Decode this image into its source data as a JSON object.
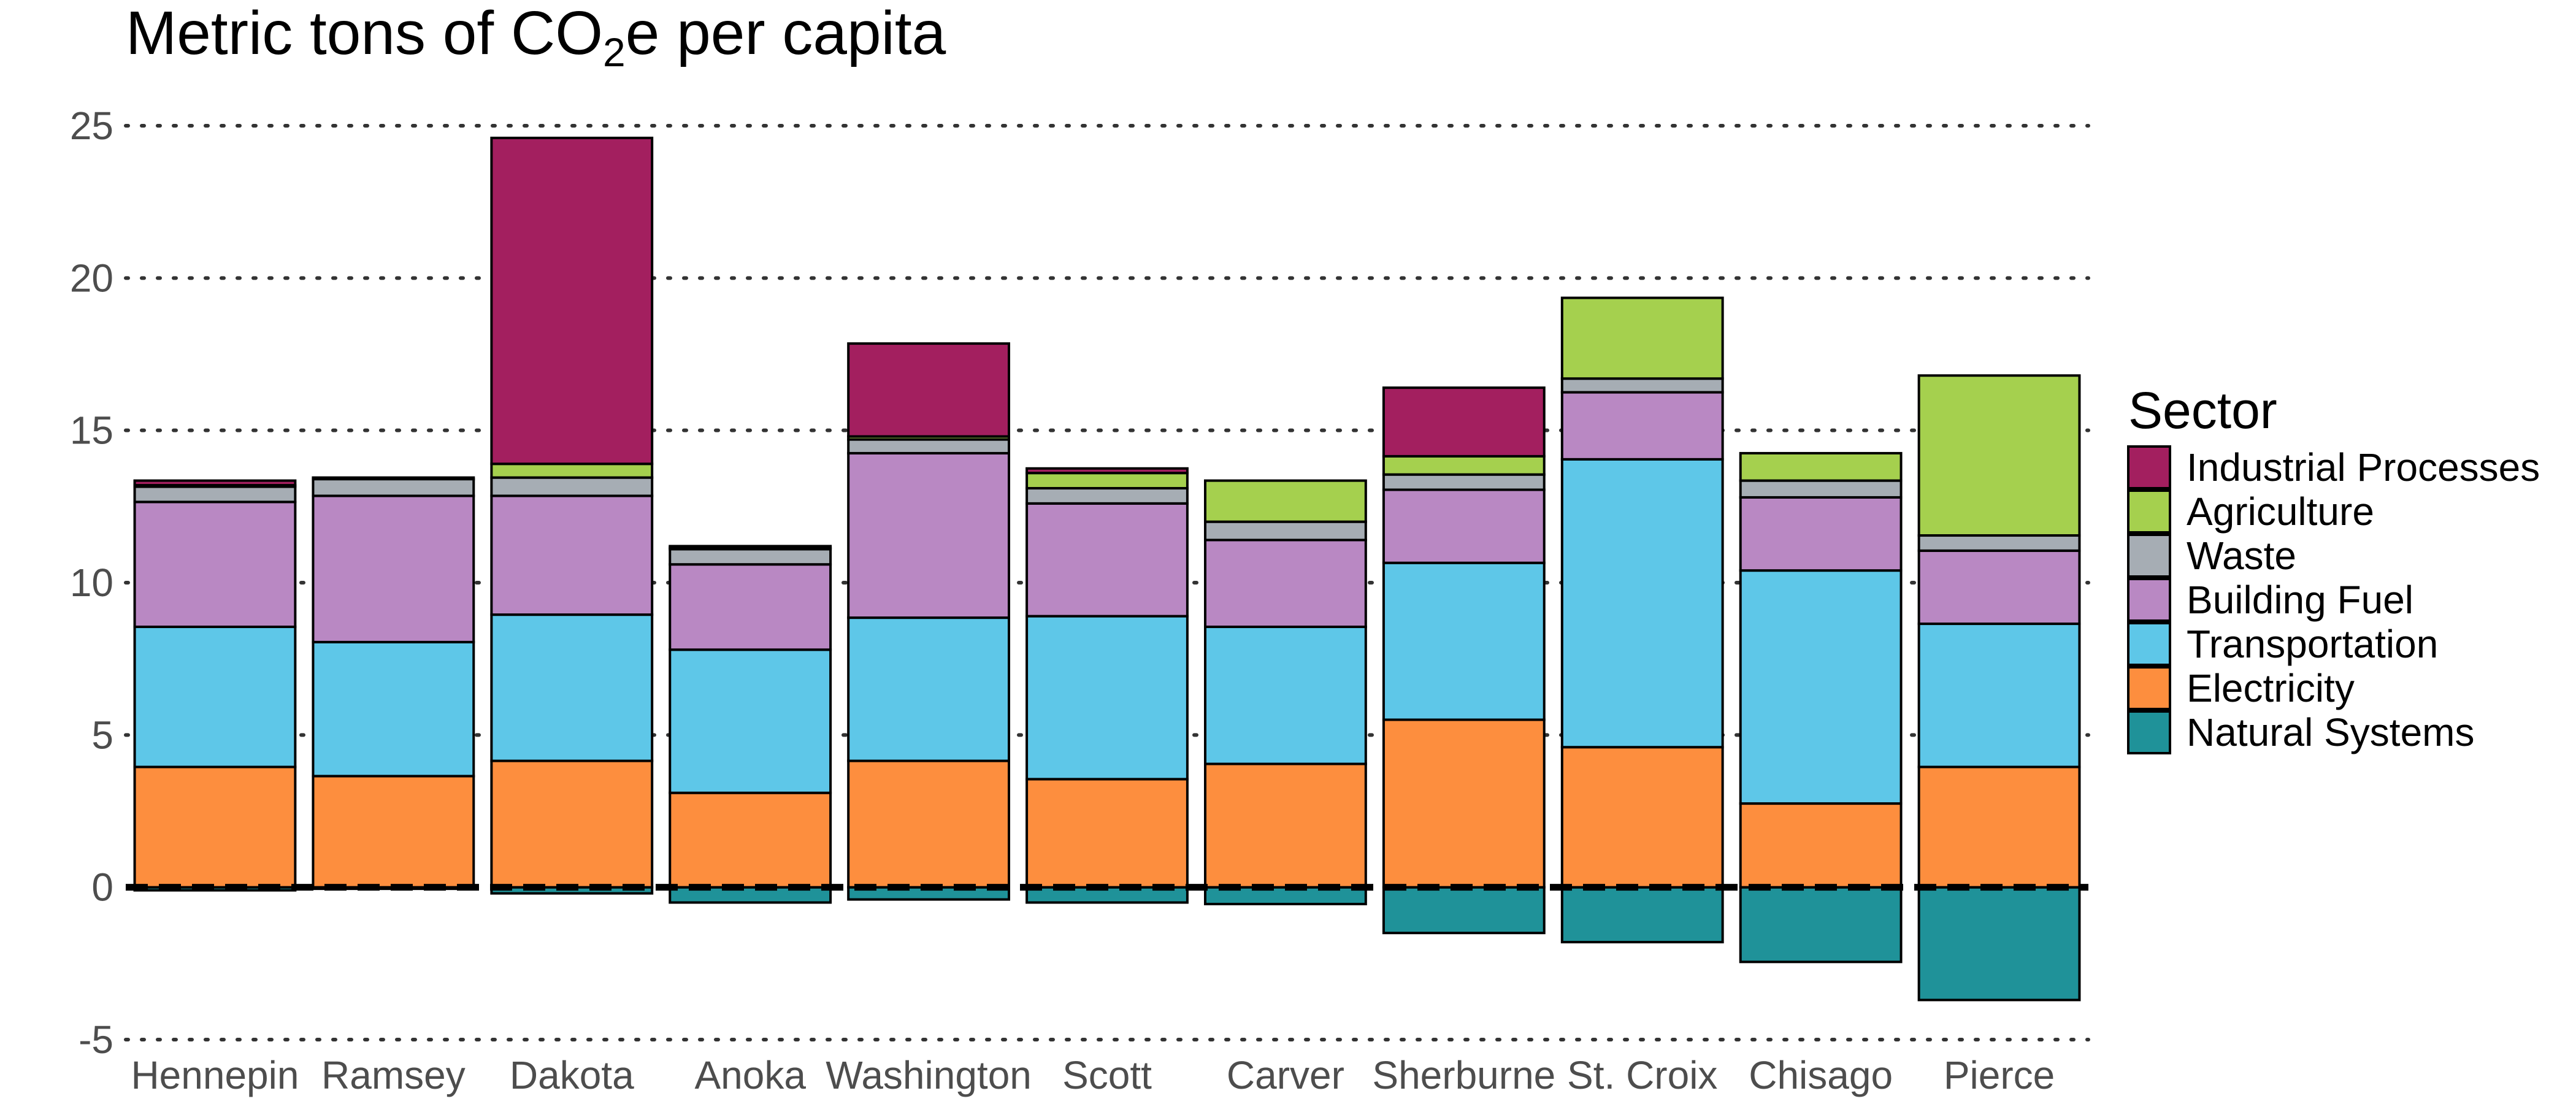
{
  "chart_data": {
    "type": "bar",
    "stacked": true,
    "title": {
      "before": "Metric tons of CO",
      "subscript": "2",
      "after": "e per capita"
    },
    "xlabel": "",
    "ylabel": "",
    "ylim": [
      -5,
      25
    ],
    "yticks": [
      -5,
      0,
      5,
      10,
      15,
      20,
      25
    ],
    "grid": "horizontal dotted",
    "zero_line": "dashed",
    "legend_title": "Sector",
    "legend_position": "right",
    "categories": [
      "Hennepin",
      "Ramsey",
      "Dakota",
      "Anoka",
      "Washington",
      "Scott",
      "Carver",
      "Sherburne",
      "St. Croix",
      "Chisago",
      "Pierce"
    ],
    "series": [
      {
        "name": "Natural Systems",
        "color": "#1f9299",
        "values": [
          -0.1,
          -0.05,
          -0.2,
          -0.5,
          -0.4,
          -0.5,
          -0.55,
          -1.5,
          -1.8,
          -2.45,
          -3.7
        ]
      },
      {
        "name": "Electricity",
        "color": "#fd8e3e",
        "values": [
          3.95,
          3.65,
          4.15,
          3.1,
          4.15,
          3.55,
          4.05,
          5.5,
          4.6,
          2.75,
          3.95
        ]
      },
      {
        "name": "Transportation",
        "color": "#5ec7e8",
        "values": [
          4.6,
          4.4,
          4.8,
          4.7,
          4.7,
          5.35,
          4.5,
          5.15,
          9.45,
          7.65,
          4.7
        ]
      },
      {
        "name": "Building Fuel",
        "color": "#b988c3",
        "values": [
          4.1,
          4.8,
          3.9,
          2.8,
          5.4,
          3.7,
          2.85,
          2.4,
          2.2,
          2.4,
          2.4
        ]
      },
      {
        "name": "Waste",
        "color": "#a6adb4",
        "values": [
          0.5,
          0.55,
          0.6,
          0.5,
          0.45,
          0.5,
          0.6,
          0.5,
          0.45,
          0.55,
          0.5
        ]
      },
      {
        "name": "Agriculture",
        "color": "#a5d04e",
        "values": [
          0.05,
          0.0,
          0.45,
          0.05,
          0.1,
          0.5,
          1.35,
          0.6,
          2.65,
          0.9,
          5.25
        ]
      },
      {
        "name": "Industrial Processes",
        "color": "#a31f5f",
        "values": [
          0.15,
          0.05,
          10.7,
          0.05,
          3.05,
          0.15,
          0.0,
          2.25,
          0.0,
          0.0,
          0.0
        ]
      }
    ],
    "legend_order": [
      "Industrial Processes",
      "Agriculture",
      "Waste",
      "Building Fuel",
      "Transportation",
      "Electricity",
      "Natural Systems"
    ]
  }
}
